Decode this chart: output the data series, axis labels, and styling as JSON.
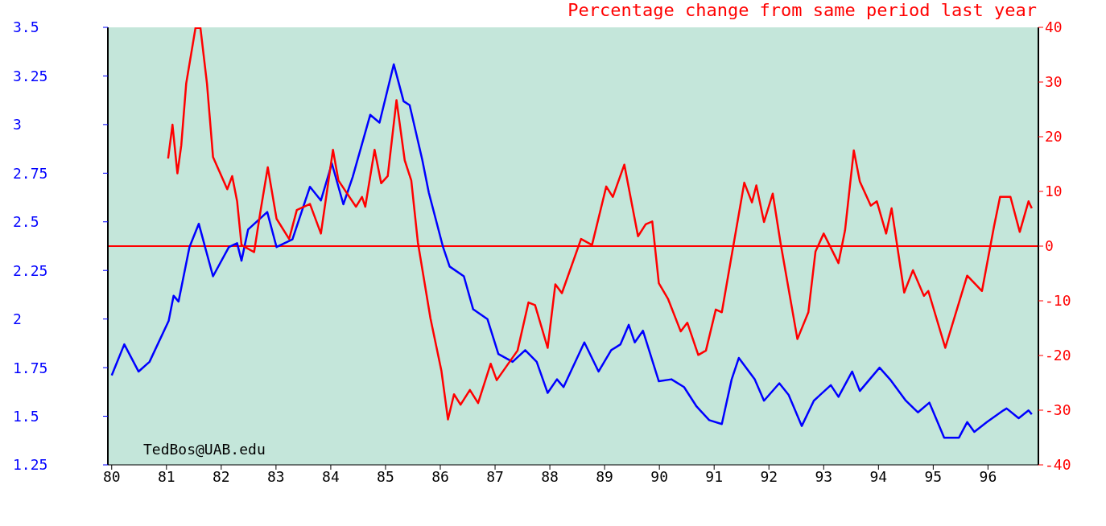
{
  "chart_data": {
    "type": "line",
    "y2label": "Percentage change from same period last year",
    "xlim": [
      79.93,
      96.92
    ],
    "xticks": [
      80,
      81,
      82,
      83,
      84,
      85,
      86,
      87,
      88,
      89,
      90,
      91,
      92,
      93,
      94,
      95,
      96
    ],
    "ylim": [
      1.25,
      3.5
    ],
    "yticks": [
      1.25,
      1.5,
      1.75,
      2,
      2.25,
      2.5,
      2.75,
      3,
      3.25,
      3.5
    ],
    "y2lim": [
      -40,
      40
    ],
    "y2ticks": [
      -40,
      -30,
      -20,
      -10,
      0,
      10,
      20,
      30,
      40
    ],
    "grid": false,
    "ref_lines": [
      {
        "axis": "y2",
        "value": 0,
        "color": "#ff0000"
      }
    ],
    "annotations": [
      "TedBos@UAB.edu"
    ],
    "series": [
      {
        "color": "#0000ff",
        "x": [
          80.0,
          80.23,
          80.49,
          80.69,
          81.04,
          81.13,
          81.22,
          81.42,
          81.59,
          81.85,
          82.14,
          82.29,
          82.37,
          82.49,
          82.84,
          83.01,
          83.3,
          83.62,
          83.82,
          84.02,
          84.23,
          84.4,
          84.72,
          84.89,
          85.15,
          85.33,
          85.44,
          85.67,
          85.79,
          86.05,
          86.17,
          86.43,
          86.6,
          86.86,
          87.06,
          87.32,
          87.55,
          87.76,
          87.96,
          88.13,
          88.25,
          88.63,
          88.89,
          89.12,
          89.29,
          89.44,
          89.55,
          89.7,
          89.99,
          90.22,
          90.45,
          90.68,
          90.91,
          91.14,
          91.32,
          91.45,
          91.74,
          91.91,
          92.19,
          92.36,
          92.6,
          92.82,
          93.13,
          93.27,
          93.52,
          93.66,
          94.02,
          94.21,
          94.5,
          94.72,
          94.93,
          95.2,
          95.47,
          95.62,
          95.75,
          95.98,
          96.28,
          96.34,
          96.56,
          96.74,
          96.8
        ],
        "values": [
          1.71,
          1.87,
          1.73,
          1.78,
          1.99,
          2.12,
          2.09,
          2.37,
          2.49,
          2.22,
          2.37,
          2.39,
          2.3,
          2.46,
          2.55,
          2.37,
          2.41,
          2.68,
          2.61,
          2.8,
          2.59,
          2.73,
          3.05,
          3.01,
          3.31,
          3.12,
          3.1,
          2.82,
          2.65,
          2.37,
          2.27,
          2.22,
          2.05,
          2.0,
          1.82,
          1.78,
          1.84,
          1.78,
          1.62,
          1.69,
          1.65,
          1.88,
          1.73,
          1.84,
          1.87,
          1.97,
          1.88,
          1.94,
          1.68,
          1.69,
          1.65,
          1.55,
          1.48,
          1.46,
          1.69,
          1.8,
          1.69,
          1.58,
          1.67,
          1.61,
          1.45,
          1.58,
          1.66,
          1.6,
          1.73,
          1.63,
          1.75,
          1.69,
          1.58,
          1.52,
          1.57,
          1.39,
          1.39,
          1.47,
          1.42,
          1.47,
          1.53,
          1.54,
          1.49,
          1.53,
          1.51
        ]
      },
      {
        "color": "#ff0000",
        "axis": "y2",
        "x": [
          81.03,
          81.11,
          81.2,
          81.27,
          81.36,
          81.53,
          81.62,
          81.74,
          81.85,
          82.11,
          82.2,
          82.29,
          82.37,
          82.6,
          82.72,
          82.85,
          83.01,
          83.24,
          83.38,
          83.62,
          83.82,
          84.04,
          84.14,
          84.46,
          84.57,
          84.63,
          84.8,
          84.92,
          85.04,
          85.2,
          85.35,
          85.47,
          85.59,
          85.82,
          86.02,
          86.14,
          86.25,
          86.37,
          86.54,
          86.69,
          86.92,
          87.03,
          87.41,
          87.61,
          87.73,
          87.96,
          88.1,
          88.22,
          88.57,
          88.77,
          89.03,
          89.15,
          89.36,
          89.61,
          89.75,
          89.87,
          89.99,
          90.16,
          90.39,
          90.51,
          90.71,
          90.85,
          91.03,
          91.14,
          91.55,
          91.69,
          91.77,
          91.91,
          92.07,
          92.21,
          92.52,
          92.72,
          92.85,
          93.0,
          93.27,
          93.39,
          93.55,
          93.66,
          93.86,
          93.97,
          94.14,
          94.24,
          94.47,
          94.63,
          94.83,
          94.91,
          95.22,
          95.62,
          95.89,
          96.11,
          96.22,
          96.41,
          96.58,
          96.74,
          96.8
        ],
        "values": [
          16.0,
          22.2,
          13.3,
          18.4,
          29.7,
          39.9,
          39.9,
          29.7,
          16.3,
          10.4,
          12.8,
          8.2,
          0.2,
          -1.1,
          6.6,
          14.4,
          5.0,
          1.3,
          6.6,
          7.7,
          2.3,
          17.6,
          12.0,
          7.2,
          9.0,
          7.2,
          17.6,
          11.5,
          12.8,
          26.7,
          15.7,
          12.0,
          0.7,
          -13.2,
          -22.8,
          -31.7,
          -27.1,
          -29.0,
          -26.3,
          -28.7,
          -21.5,
          -24.5,
          -19.1,
          -10.3,
          -10.8,
          -18.6,
          -7.0,
          -8.6,
          1.3,
          0.2,
          10.9,
          9.0,
          14.9,
          1.8,
          4.0,
          4.5,
          -6.8,
          -9.7,
          -15.6,
          -14.0,
          -19.9,
          -19.1,
          -11.6,
          -12.1,
          11.6,
          8.0,
          11.1,
          4.4,
          9.6,
          0.7,
          -17.0,
          -12.1,
          -1.0,
          2.3,
          -3.1,
          2.9,
          17.5,
          11.8,
          7.4,
          8.2,
          2.3,
          6.9,
          -8.5,
          -4.4,
          -9.1,
          -8.2,
          -18.6,
          -5.4,
          -8.2,
          3.6,
          9.0,
          9.0,
          2.6,
          8.2,
          6.9
        ]
      }
    ]
  }
}
